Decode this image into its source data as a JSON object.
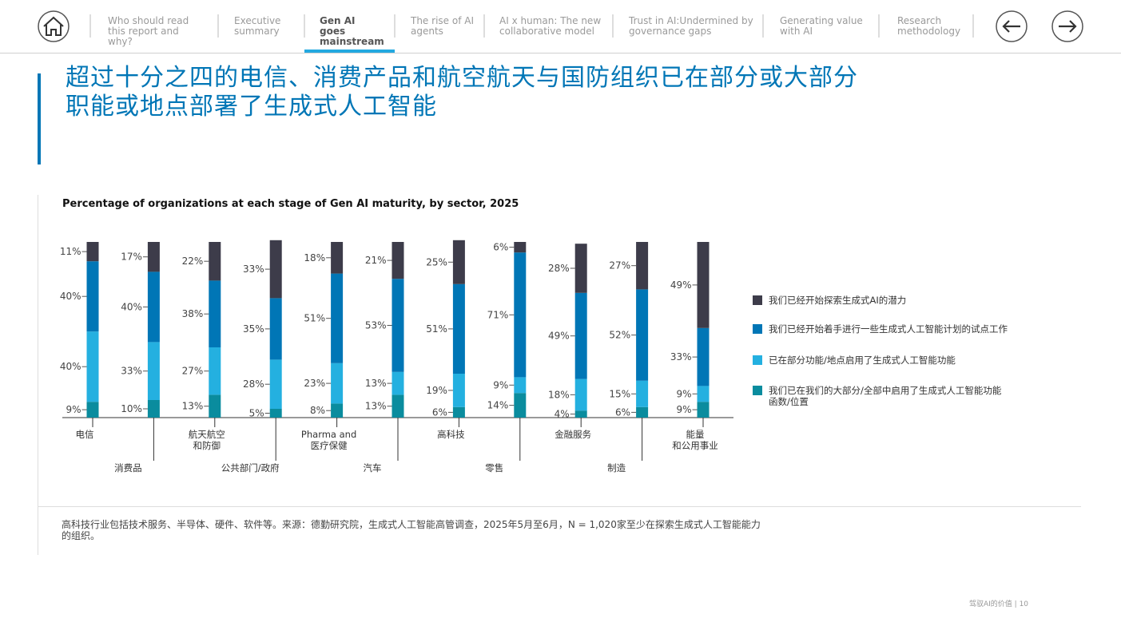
{
  "nav": {
    "tabs": [
      "Who should read this report and why?",
      "Executive summary",
      "Gen AI goes mainstream",
      "The rise of AI agents",
      "AI x human: The new collaborative model",
      "Trust in AI:Undermined by governance gaps",
      "Generating value with AI",
      "Research methodology"
    ],
    "active_tab": 2
  },
  "title": "超过十分之四的电信、消费产品和航空航天与国防组织已在部分或大部分\n职能或地点部署了生成式人工智能",
  "chart_data": {
    "type": "bar",
    "stacked": true,
    "title": "Percentage of organizations at each stage of Gen AI maturity, by sector, 2025",
    "categories": [
      "电信",
      "消费品",
      "航天航空\n和防御",
      "公共部门/政府",
      "Pharma and\n医疗保健",
      "汽车",
      "高科技",
      "零售",
      "金融服务",
      "制造",
      "能量\n和公用事业"
    ],
    "series": [
      {
        "name": "我们已经开始探索生成式AI的潜力",
        "color": "#3d3c4a",
        "values": [
          11,
          17,
          22,
          33,
          18,
          21,
          25,
          6,
          28,
          27,
          49
        ],
        "value_labels": [
          "11%",
          "17%",
          "22%",
          "33%",
          "18%",
          "21%",
          "25%",
          "6%",
          "28%",
          "27%",
          "49%"
        ]
      },
      {
        "name": "我们已经开始着手进行一些生成式人工智能计划的试点工作",
        "color": "#0076b6",
        "values": [
          40,
          40,
          38,
          35,
          51,
          53,
          51,
          71,
          49,
          52,
          33
        ],
        "value_labels": [
          "40%",
          "40%",
          "38%",
          "35%",
          "51%",
          "53%",
          "51%",
          "71%",
          "49%",
          "52%",
          "33%"
        ]
      },
      {
        "name": "已在部分功能/地点启用了生成式人工智能功能",
        "color": "#24b0e0",
        "values": [
          40,
          33,
          27,
          28,
          23,
          13,
          19,
          9,
          18,
          15,
          9
        ],
        "value_labels": [
          "40%",
          "33%",
          "27%",
          "28%",
          "23%",
          "13%",
          "19%",
          "9%",
          "18%",
          "15%",
          "9%"
        ]
      },
      {
        "name": "我们已在我们的大部分/全部中启用了生成式人工智能功能\n函数/位置",
        "color": "#0a8c9e",
        "values": [
          9,
          10,
          13,
          5,
          8,
          13,
          6,
          14,
          4,
          6,
          9
        ],
        "value_labels": [
          "9%",
          "10%",
          "13%",
          "5%",
          "8%",
          "13%",
          "6%",
          "14%",
          "4%",
          "6%",
          "9%"
        ]
      }
    ]
  },
  "footnote": "高科技行业包括技术服务、半导体、硬件、软件等。来源：德勤研究院，生成式人工智能高管调查，2025年5月至6月，N = 1,020家至少在探索生成式人工智能能力的组织。",
  "footer": "驾驭AI的价值 | 10"
}
